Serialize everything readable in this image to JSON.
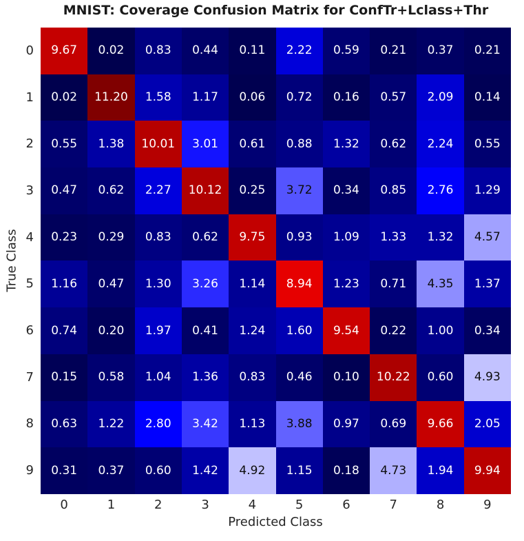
{
  "chart_data": {
    "type": "heatmap",
    "title": "MNIST: Coverage Confusion Matrix for ConfTr+Lclass+Thr",
    "xlabel": "Predicted Class",
    "ylabel": "True Class",
    "x_ticklabels": [
      "0",
      "1",
      "2",
      "3",
      "4",
      "5",
      "6",
      "7",
      "8",
      "9"
    ],
    "y_ticklabels": [
      "0",
      "1",
      "2",
      "3",
      "4",
      "5",
      "6",
      "7",
      "8",
      "9"
    ],
    "values": [
      [
        9.67,
        0.02,
        0.83,
        0.44,
        0.11,
        2.22,
        0.59,
        0.21,
        0.37,
        0.21
      ],
      [
        0.02,
        11.2,
        1.58,
        1.17,
        0.06,
        0.72,
        0.16,
        0.57,
        2.09,
        0.14
      ],
      [
        0.55,
        1.38,
        10.01,
        3.01,
        0.61,
        0.88,
        1.32,
        0.62,
        2.24,
        0.55
      ],
      [
        0.47,
        0.62,
        2.27,
        10.12,
        0.25,
        3.72,
        0.34,
        0.85,
        2.76,
        1.29
      ],
      [
        0.23,
        0.29,
        0.83,
        0.62,
        9.75,
        0.93,
        1.09,
        1.33,
        1.32,
        4.57
      ],
      [
        1.16,
        0.47,
        1.3,
        3.26,
        1.14,
        8.94,
        1.23,
        0.71,
        4.35,
        1.37
      ],
      [
        0.74,
        0.2,
        1.97,
        0.41,
        1.24,
        1.6,
        9.54,
        0.22,
        1.0,
        0.34
      ],
      [
        0.15,
        0.58,
        1.04,
        1.36,
        0.83,
        0.46,
        0.1,
        10.22,
        0.6,
        4.93
      ],
      [
        0.63,
        1.22,
        2.8,
        3.42,
        1.13,
        3.88,
        0.97,
        0.69,
        9.66,
        2.05
      ],
      [
        0.31,
        0.37,
        0.6,
        1.42,
        4.92,
        1.15,
        0.18,
        4.73,
        1.94,
        9.94
      ]
    ],
    "value_decimals": 2,
    "colormap": "seismic",
    "vmin": 0,
    "vmax": 11.2,
    "legend": "none",
    "grid": false,
    "colors": {
      "background": "#ffffff",
      "title_text": "#1a1a1a",
      "tick_text": "#262626",
      "cell_text_light": "#ffffff",
      "cell_text_dark": "#0d0d0d"
    }
  }
}
